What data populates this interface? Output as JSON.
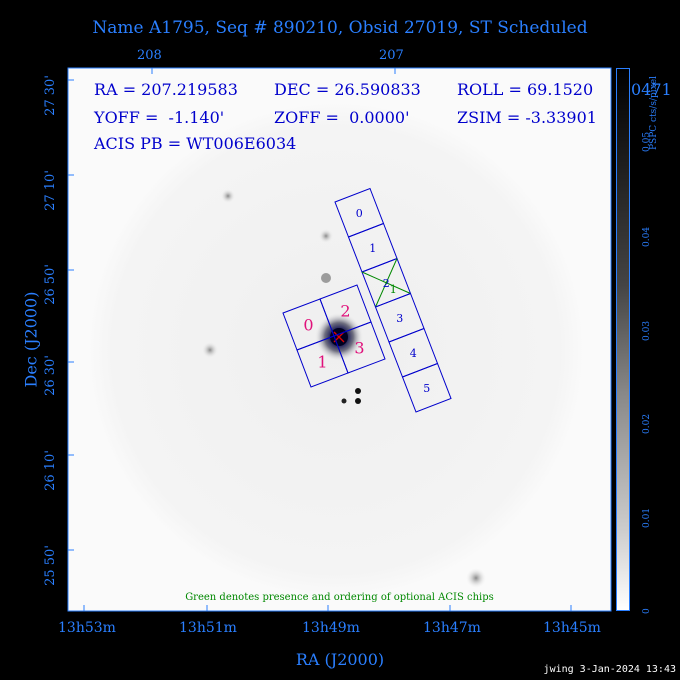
{
  "title": "Name A1795, Seq # 890210, Obsid 27019, ST Scheduled",
  "top_ticks": [
    "208",
    "207"
  ],
  "info": {
    "ra": "RA = 207.219583",
    "dec": "DEC = 26.590833",
    "roll": "ROLL = 69.1520",
    "yoff": "YOFF =  -1.140'",
    "zoff": "ZOFF =  0.0000'",
    "zsim": "ZSIM = -3.33901",
    "zsim_tail": "0471",
    "acis": "ACIS PB = WT006E6034"
  },
  "dec_ticks": [
    "27 30'",
    "27 10'",
    "26 50'",
    "26 30'",
    "26 10'",
    "25 50'"
  ],
  "ra_ticks": [
    "13h53m",
    "13h51m",
    "13h49m",
    "13h47m",
    "13h45m"
  ],
  "xlabel": "RA (J2000)",
  "ylabel": "Dec (J2000)",
  "colorbar": {
    "label": "PSPC cts/s/pixel",
    "ticks": [
      "0",
      "0.01",
      "0.02",
      "0.03",
      "0.04",
      "0.05"
    ]
  },
  "chips_s": [
    "0",
    "1",
    "2",
    "3",
    "4",
    "5"
  ],
  "chips_i": [
    "0",
    "1",
    "2",
    "3"
  ],
  "optional_chip_label": "1",
  "green_note": "Green denotes presence and ordering of optional ACIS chips",
  "footer": "jwing  3-Jan-2024 13:43",
  "colors": {
    "chip_outline": "#0000cc",
    "i_label": "#e0107a",
    "optional": "#008800",
    "axis": "#2a7fff"
  }
}
